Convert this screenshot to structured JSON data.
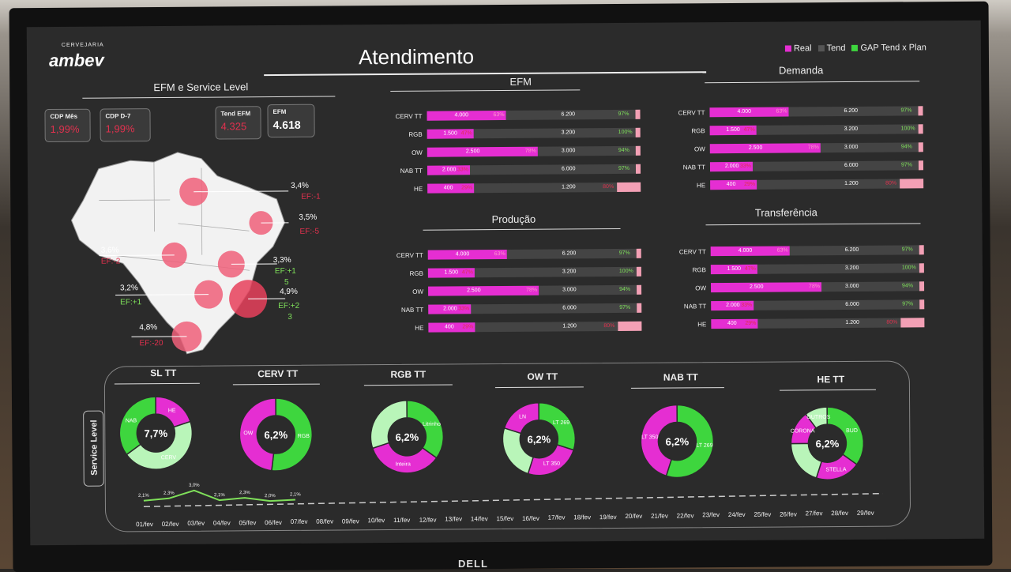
{
  "header": {
    "brand_small": "CERVEJARIA",
    "brand": "ambev",
    "title": "Atendimento"
  },
  "legend": [
    {
      "label": "Real",
      "color": "#e52ed2"
    },
    {
      "label": "Tend",
      "color": "#555555"
    },
    {
      "label": "GAP Tend x Plan",
      "color": "#3ed63e"
    }
  ],
  "efm_service": {
    "title": "EFM e Service Level",
    "kpis": [
      {
        "label": "CDP Mês",
        "value": "1,99%",
        "color": "#e0314e"
      },
      {
        "label": "CDP D-7",
        "value": "1,99%",
        "color": "#e0314e"
      },
      {
        "label": "Tend EFM",
        "value": "4.325",
        "color": "#e0314e"
      },
      {
        "label": "EFM",
        "value": "4.618",
        "color": "#ffffff"
      }
    ],
    "regions": [
      {
        "pct": "3,4%",
        "ef": "EF:-1",
        "ef_color": "#e0314e"
      },
      {
        "pct": "3,5%",
        "ef": "EF:-5",
        "ef_color": "#e0314e"
      },
      {
        "pct": "3,6%",
        "ef": "EF:-2",
        "ef_color": "#e0314e"
      },
      {
        "pct": "3,3%",
        "ef": "EF:+1",
        "ef2": "5",
        "ef_color": "#7fe05a"
      },
      {
        "pct": "3,2%",
        "ef": "EF:+1",
        "ef_color": "#7fe05a"
      },
      {
        "pct": "4,9%",
        "ef": "EF:+2",
        "ef2": "3",
        "ef_color": "#7fe05a"
      },
      {
        "pct": "4,8%",
        "ef": "EF:-20",
        "ef_color": "#e0314e"
      }
    ]
  },
  "panels": [
    {
      "title": "EFM",
      "rows": [
        {
          "cat": "CERV TT",
          "real": "4.000",
          "real_pct": "63%",
          "tend": "6.200",
          "gap": "97%",
          "real_frac": 0.37,
          "gap_good": true
        },
        {
          "cat": "RGB",
          "real": "1.500",
          "real_pct": "47%",
          "tend": "3.200",
          "gap": "100%",
          "real_frac": 0.22,
          "gap_good": true
        },
        {
          "cat": "OW",
          "real": "2.500",
          "real_pct": "78%",
          "tend": "3.000",
          "gap": "94%",
          "real_frac": 0.52,
          "gap_good": true
        },
        {
          "cat": "NAB TT",
          "real": "2.000",
          "real_pct": "33%",
          "tend": "6.000",
          "gap": "97%",
          "real_frac": 0.2,
          "gap_good": true
        },
        {
          "cat": "HE",
          "real": "400",
          "real_pct": "29%",
          "tend": "1.200",
          "gap": "80%",
          "real_frac": 0.22,
          "gap_good": false
        }
      ]
    },
    {
      "title": "Demanda",
      "rows": [
        {
          "cat": "CERV TT",
          "real": "4.000",
          "real_pct": "63%",
          "tend": "6.200",
          "gap": "97%",
          "real_frac": 0.37,
          "gap_good": true
        },
        {
          "cat": "RGB",
          "real": "1.500",
          "real_pct": "47%",
          "tend": "3.200",
          "gap": "100%",
          "real_frac": 0.22,
          "gap_good": true
        },
        {
          "cat": "OW",
          "real": "2.500",
          "real_pct": "78%",
          "tend": "3.000",
          "gap": "94%",
          "real_frac": 0.52,
          "gap_good": true
        },
        {
          "cat": "NAB TT",
          "real": "2.000",
          "real_pct": "33%",
          "tend": "6.000",
          "gap": "97%",
          "real_frac": 0.2,
          "gap_good": true
        },
        {
          "cat": "HE",
          "real": "400",
          "real_pct": "29%",
          "tend": "1.200",
          "gap": "80%",
          "real_frac": 0.22,
          "gap_good": false
        }
      ]
    },
    {
      "title": "Produção",
      "rows": [
        {
          "cat": "CERV TT",
          "real": "4.000",
          "real_pct": "63%",
          "tend": "6.200",
          "gap": "97%",
          "real_frac": 0.37,
          "gap_good": true
        },
        {
          "cat": "RGB",
          "real": "1.500",
          "real_pct": "47%",
          "tend": "3.200",
          "gap": "100%",
          "real_frac": 0.22,
          "gap_good": true
        },
        {
          "cat": "OW",
          "real": "2.500",
          "real_pct": "78%",
          "tend": "3.000",
          "gap": "94%",
          "real_frac": 0.52,
          "gap_good": true
        },
        {
          "cat": "NAB TT",
          "real": "2.000",
          "real_pct": "33%",
          "tend": "6.000",
          "gap": "97%",
          "real_frac": 0.2,
          "gap_good": true
        },
        {
          "cat": "HE",
          "real": "400",
          "real_pct": "29%",
          "tend": "1.200",
          "gap": "80%",
          "real_frac": 0.22,
          "gap_good": false
        }
      ]
    },
    {
      "title": "Transferência",
      "rows": [
        {
          "cat": "CERV TT",
          "real": "4.000",
          "real_pct": "63%",
          "tend": "6.200",
          "gap": "97%",
          "real_frac": 0.37,
          "gap_good": true
        },
        {
          "cat": "RGB",
          "real": "1.500",
          "real_pct": "47%",
          "tend": "3.200",
          "gap": "100%",
          "real_frac": 0.22,
          "gap_good": true
        },
        {
          "cat": "OW",
          "real": "2.500",
          "real_pct": "78%",
          "tend": "3.000",
          "gap": "94%",
          "real_frac": 0.52,
          "gap_good": true
        },
        {
          "cat": "NAB TT",
          "real": "2.000",
          "real_pct": "33%",
          "tend": "6.000",
          "gap": "97%",
          "real_frac": 0.2,
          "gap_good": true
        },
        {
          "cat": "HE",
          "real": "400",
          "real_pct": "29%",
          "tend": "1.200",
          "gap": "80%",
          "real_frac": 0.22,
          "gap_good": false
        }
      ]
    }
  ],
  "service_level": {
    "tag": "Service Level",
    "donuts": [
      {
        "title": "SL TT",
        "center": "7,7%",
        "slices": [
          {
            "label": "HE",
            "value": 20,
            "color": "#e52ed2"
          },
          {
            "label": "CERV",
            "value": 45,
            "color": "#b9f5b9"
          },
          {
            "label": "NAB",
            "value": 35,
            "color": "#3ed63e"
          }
        ]
      },
      {
        "title": "CERV TT",
        "center": "6,2%",
        "slices": [
          {
            "label": "RGB",
            "value": 52,
            "color": "#3ed63e"
          },
          {
            "label": "OW",
            "value": 48,
            "color": "#e52ed2"
          }
        ]
      },
      {
        "title": "RGB TT",
        "center": "6,2%",
        "slices": [
          {
            "label": "Litrinho",
            "value": 35,
            "color": "#3ed63e"
          },
          {
            "label": "Inteira",
            "value": 35,
            "color": "#e52ed2"
          },
          {
            "label": "",
            "value": 30,
            "color": "#b9f5b9"
          }
        ]
      },
      {
        "title": "OW TT",
        "center": "6,2%",
        "slices": [
          {
            "label": "LT 269",
            "value": 30,
            "color": "#3ed63e"
          },
          {
            "label": "LT 350",
            "value": 25,
            "color": "#e52ed2"
          },
          {
            "label": "",
            "value": 25,
            "color": "#b9f5b9"
          },
          {
            "label": "LN",
            "value": 20,
            "color": "#e52ed2"
          }
        ]
      },
      {
        "title": "NAB TT",
        "center": "6,2%",
        "slices": [
          {
            "label": "LT 269",
            "value": 55,
            "color": "#3ed63e"
          },
          {
            "label": "LT 350",
            "value": 45,
            "color": "#e52ed2"
          }
        ]
      },
      {
        "title": "HE TT",
        "center": "6,2%",
        "slices": [
          {
            "label": "BUD",
            "value": 35,
            "color": "#3ed63e"
          },
          {
            "label": "STELLA",
            "value": 20,
            "color": "#e52ed2"
          },
          {
            "label": "",
            "value": 20,
            "color": "#b9f5b9"
          },
          {
            "label": "CORONA",
            "value": 15,
            "color": "#e52ed2"
          },
          {
            "label": "OUTROS",
            "value": 10,
            "color": "#b9f5b9"
          }
        ]
      }
    ],
    "trend": {
      "labels": [
        "2,1%",
        "2,3%",
        "3,0%",
        "2,1%",
        "2,3%",
        "2,0%",
        "2,1%"
      ],
      "values": [
        2.1,
        2.3,
        3.0,
        2.1,
        2.3,
        2.0,
        2.1
      ]
    },
    "dates": [
      "01/fev",
      "02/fev",
      "03/fev",
      "04/fev",
      "05/fev",
      "06/fev",
      "07/fev",
      "08/fev",
      "09/fev",
      "10/fev",
      "11/fev",
      "12/fev",
      "13/fev",
      "14/fev",
      "15/fev",
      "16/fev",
      "17/fev",
      "18/fev",
      "19/fev",
      "20/fev",
      "21/fev",
      "22/fev",
      "23/fev",
      "24/fev",
      "25/fev",
      "26/fev",
      "27/fev",
      "28/fev",
      "29/fev"
    ]
  },
  "monitor": {
    "brand": "DELL"
  }
}
